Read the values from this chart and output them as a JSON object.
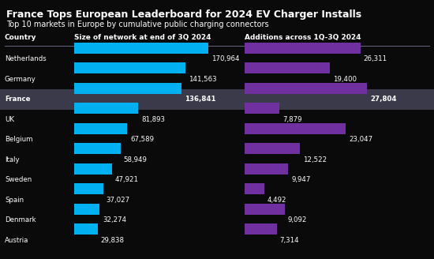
{
  "title": "France Tops European Leaderboard for 2024 EV Charger Installs",
  "subtitle": "Top 10 markets in Europe by cumulative public charging connectors",
  "col1_header": "Country",
  "col2_header": "Size of network at end of 3Q 2024",
  "col3_header": "Additions across 1Q-3Q 2024",
  "background_color": "#0a0a0a",
  "bar_color_cyan": "#00b0f0",
  "bar_color_purple": "#7030a0",
  "highlight_row": "France",
  "highlight_bg": "#3a3a4a",
  "countries": [
    "Netherlands",
    "Germany",
    "France",
    "UK",
    "Belgium",
    "Italy",
    "Sweden",
    "Spain",
    "Denmark",
    "Austria"
  ],
  "network_size": [
    170964,
    141563,
    136841,
    81893,
    67589,
    58949,
    47921,
    37027,
    32274,
    29838
  ],
  "additions": [
    26311,
    19400,
    27804,
    7879,
    23047,
    12522,
    9947,
    4492,
    9092,
    7314
  ],
  "network_labels": [
    "170,964",
    "141,563",
    "136,841",
    "81,893",
    "67,589",
    "58,949",
    "47,921",
    "37,027",
    "32,274",
    "29,838"
  ],
  "addition_labels": [
    "26,311",
    "19,400",
    "27,804",
    "7,879",
    "23,047",
    "12,522",
    "9,947",
    "4,492",
    "9,092",
    "7,314"
  ],
  "text_color": "#ffffff",
  "divider_color": "#666680",
  "network_max": 170964,
  "addition_max": 27804,
  "title_fontsize": 9.0,
  "subtitle_fontsize": 7.0,
  "label_fontsize": 6.2,
  "header_fontsize": 6.5
}
